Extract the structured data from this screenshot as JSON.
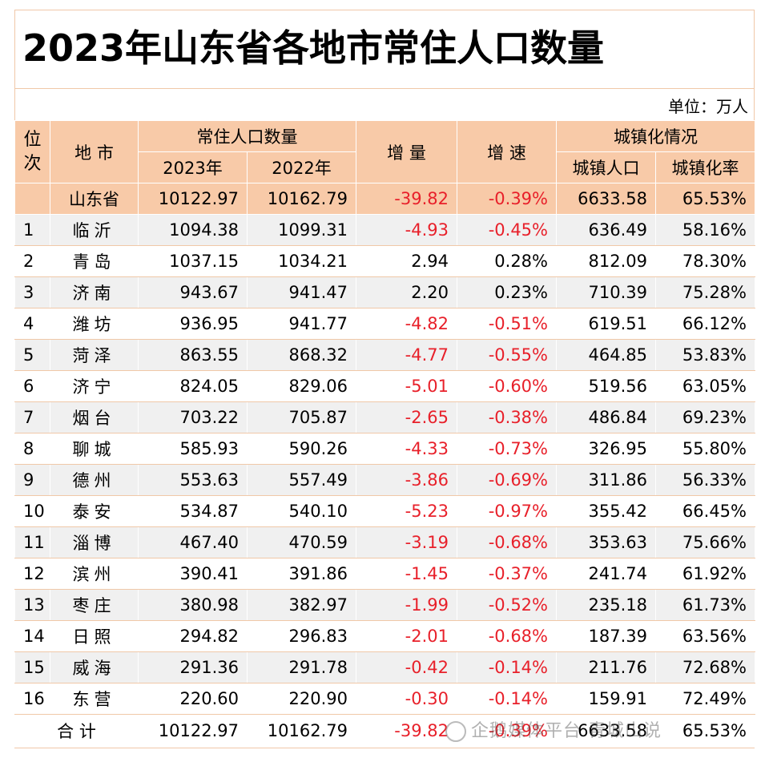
{
  "title": "2023年山东省各地市常住人口数量",
  "unit": "单位：万人",
  "headers": {
    "rank": "位次",
    "city": "地 市",
    "pop": "常住人口数量",
    "y2023": "2023年",
    "y2022": "2022年",
    "inc": "增 量",
    "rate": "增 速",
    "urban": "城镇化情况",
    "urban_pop": "城镇人口",
    "urban_rate": "城镇化率"
  },
  "province": {
    "name": "山东省",
    "y2023": "10122.97",
    "y2022": "10162.79",
    "inc": "-39.82",
    "rate": "-0.39%",
    "urban_pop": "6633.58",
    "urban_rate": "65.53%"
  },
  "rows": [
    {
      "rank": "1",
      "city": "临沂",
      "y2023": "1094.38",
      "y2022": "1099.31",
      "inc": "-4.93",
      "rate": "-0.45%",
      "urban_pop": "636.49",
      "urban_rate": "58.16%"
    },
    {
      "rank": "2",
      "city": "青岛",
      "y2023": "1037.15",
      "y2022": "1034.21",
      "inc": "2.94",
      "rate": "0.28%",
      "urban_pop": "812.09",
      "urban_rate": "78.30%"
    },
    {
      "rank": "3",
      "city": "济南",
      "y2023": "943.67",
      "y2022": "941.47",
      "inc": "2.20",
      "rate": "0.23%",
      "urban_pop": "710.39",
      "urban_rate": "75.28%"
    },
    {
      "rank": "4",
      "city": "潍坊",
      "y2023": "936.95",
      "y2022": "941.77",
      "inc": "-4.82",
      "rate": "-0.51%",
      "urban_pop": "619.51",
      "urban_rate": "66.12%"
    },
    {
      "rank": "5",
      "city": "菏泽",
      "y2023": "863.55",
      "y2022": "868.32",
      "inc": "-4.77",
      "rate": "-0.55%",
      "urban_pop": "464.85",
      "urban_rate": "53.83%"
    },
    {
      "rank": "6",
      "city": "济宁",
      "y2023": "824.05",
      "y2022": "829.06",
      "inc": "-5.01",
      "rate": "-0.60%",
      "urban_pop": "519.56",
      "urban_rate": "63.05%"
    },
    {
      "rank": "7",
      "city": "烟台",
      "y2023": "703.22",
      "y2022": "705.87",
      "inc": "-2.65",
      "rate": "-0.38%",
      "urban_pop": "486.84",
      "urban_rate": "69.23%"
    },
    {
      "rank": "8",
      "city": "聊城",
      "y2023": "585.93",
      "y2022": "590.26",
      "inc": "-4.33",
      "rate": "-0.73%",
      "urban_pop": "326.95",
      "urban_rate": "55.80%"
    },
    {
      "rank": "9",
      "city": "德州",
      "y2023": "553.63",
      "y2022": "557.49",
      "inc": "-3.86",
      "rate": "-0.69%",
      "urban_pop": "311.86",
      "urban_rate": "56.33%"
    },
    {
      "rank": "10",
      "city": "泰安",
      "y2023": "534.87",
      "y2022": "540.10",
      "inc": "-5.23",
      "rate": "-0.97%",
      "urban_pop": "355.42",
      "urban_rate": "66.45%"
    },
    {
      "rank": "11",
      "city": "淄博",
      "y2023": "467.40",
      "y2022": "470.59",
      "inc": "-3.19",
      "rate": "-0.68%",
      "urban_pop": "353.63",
      "urban_rate": "75.66%"
    },
    {
      "rank": "12",
      "city": "滨州",
      "y2023": "390.41",
      "y2022": "391.86",
      "inc": "-1.45",
      "rate": "-0.37%",
      "urban_pop": "241.74",
      "urban_rate": "61.92%"
    },
    {
      "rank": "13",
      "city": "枣庄",
      "y2023": "380.98",
      "y2022": "382.97",
      "inc": "-1.99",
      "rate": "-0.52%",
      "urban_pop": "235.18",
      "urban_rate": "61.73%"
    },
    {
      "rank": "14",
      "city": "日照",
      "y2023": "294.82",
      "y2022": "296.83",
      "inc": "-2.01",
      "rate": "-0.68%",
      "urban_pop": "187.39",
      "urban_rate": "63.56%"
    },
    {
      "rank": "15",
      "city": "威海",
      "y2023": "291.36",
      "y2022": "291.78",
      "inc": "-0.42",
      "rate": "-0.14%",
      "urban_pop": "211.76",
      "urban_rate": "72.68%"
    },
    {
      "rank": "16",
      "city": "东营",
      "y2023": "220.60",
      "y2022": "220.90",
      "inc": "-0.30",
      "rate": "-0.14%",
      "urban_pop": "159.91",
      "urban_rate": "72.49%"
    }
  ],
  "total": {
    "label": "合 计",
    "y2023": "10122.97",
    "y2022": "10162.79",
    "inc": "-39.82",
    "rate": "-0.39%",
    "urban_pop": "6633.58",
    "urban_rate": "65.53%"
  },
  "watermark": "企鹅媒体平台 青城山说",
  "colors": {
    "header_bg": "#f8caa8",
    "negative": "#e8202a",
    "stripe": "#f0f0f0"
  }
}
